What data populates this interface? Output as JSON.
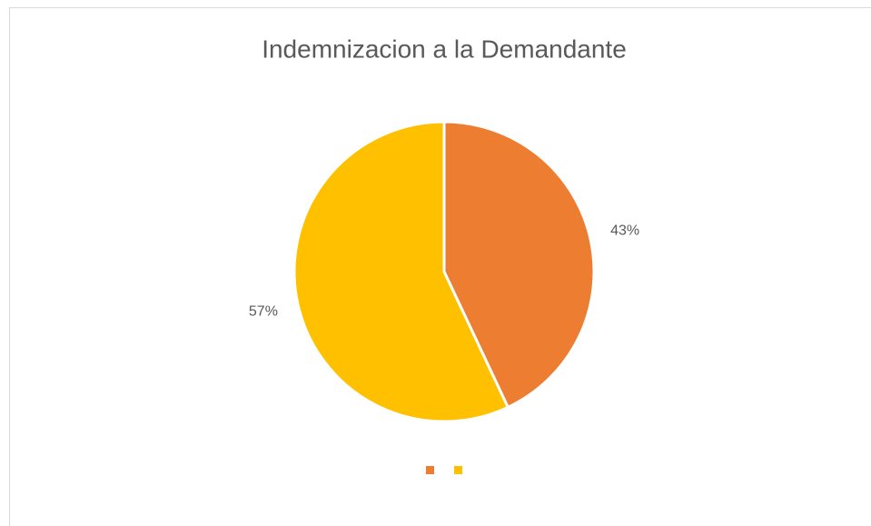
{
  "chart_data": {
    "type": "pie",
    "title": "Indemnizacion a la Demandante",
    "categories": [
      null,
      null
    ],
    "values": [
      43,
      57
    ],
    "value_labels": [
      "43%",
      "57%"
    ],
    "colors": [
      "#ed7d31",
      "#ffc000"
    ]
  }
}
